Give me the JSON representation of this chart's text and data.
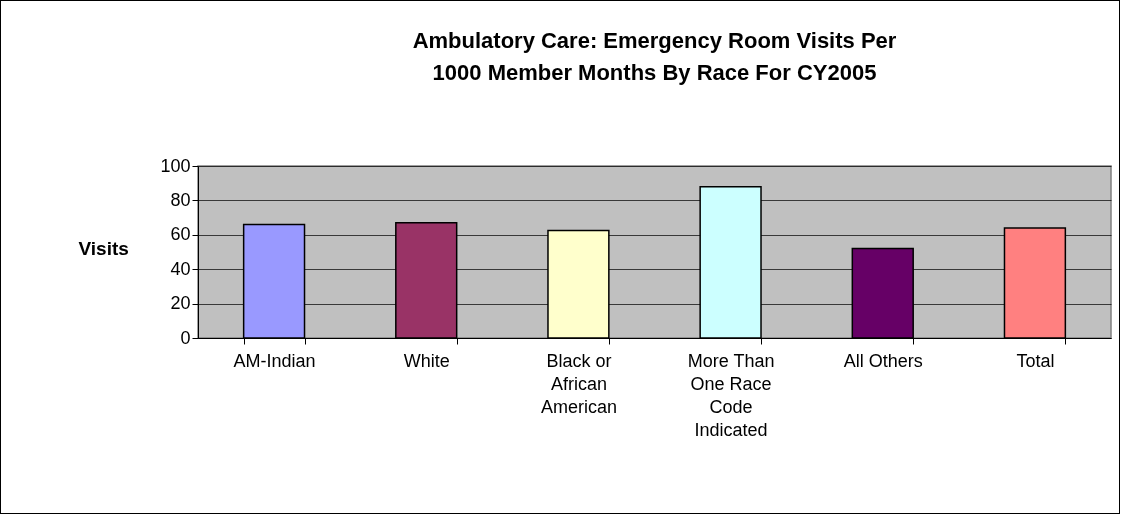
{
  "chart_data": {
    "type": "bar",
    "title": "Ambulatory Care:  Emergency Room Visits Per 1000 Member Months By Race For CY2005",
    "ylabel": "Visits",
    "categories": [
      "AM-Indian",
      "White",
      "Black or African American",
      "More Than One Race Code Indicated",
      "All Others",
      "Total"
    ],
    "values": [
      66,
      67,
      62.5,
      88,
      52,
      64
    ],
    "colors": [
      "#9999ff",
      "#993366",
      "#ffffcc",
      "#ccffff",
      "#660066",
      "#ff8080"
    ],
    "ylim": [
      0,
      100
    ],
    "yticks": [
      0,
      20,
      40,
      60,
      80,
      100
    ],
    "grid": "y"
  }
}
